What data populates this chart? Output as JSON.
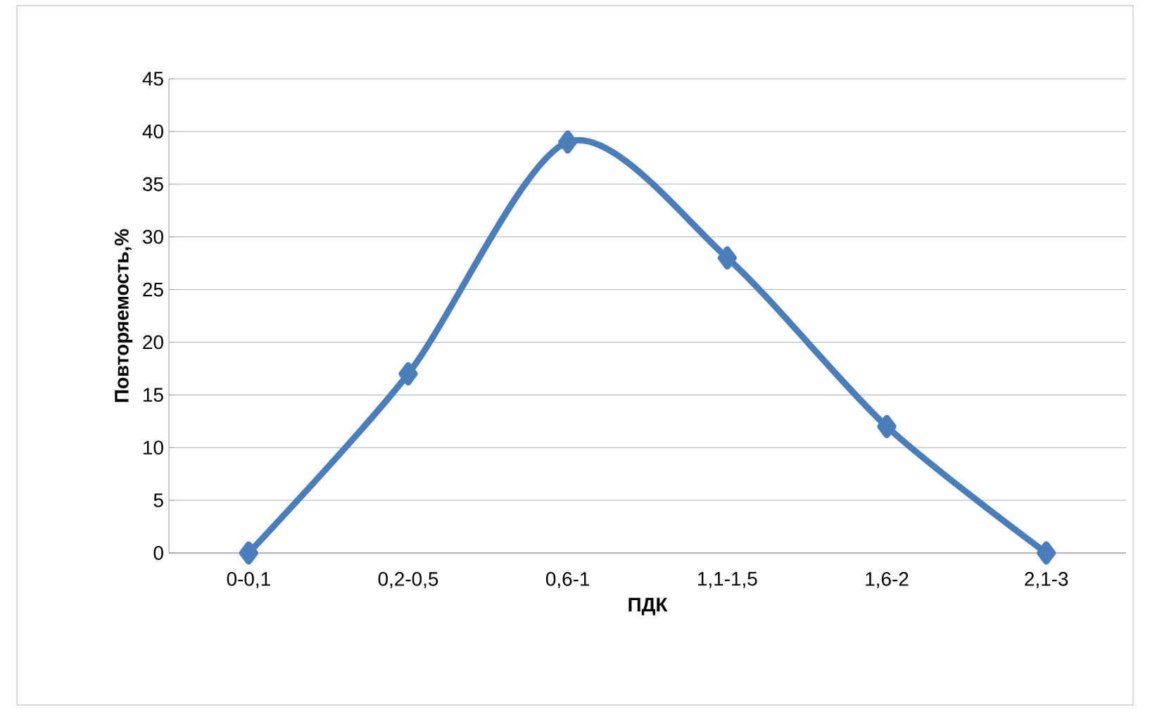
{
  "chart_data": {
    "type": "line",
    "xlabel": "ПДК",
    "ylabel": "Повторяемость,%",
    "categories": [
      "0-0,1",
      "0,2-0,5",
      "0,6-1",
      "1,1-1,5",
      "1,6-2",
      "2,1-3"
    ],
    "series": [
      {
        "color": "#4a7ebb",
        "values": [
          0,
          17,
          39,
          28,
          12,
          0
        ]
      }
    ],
    "ylim": [
      0,
      45
    ],
    "yticks": [
      0,
      5,
      10,
      15,
      20,
      25,
      30,
      35,
      40,
      45
    ],
    "grid": "y",
    "marker": "diamond",
    "line_style": "solid"
  }
}
